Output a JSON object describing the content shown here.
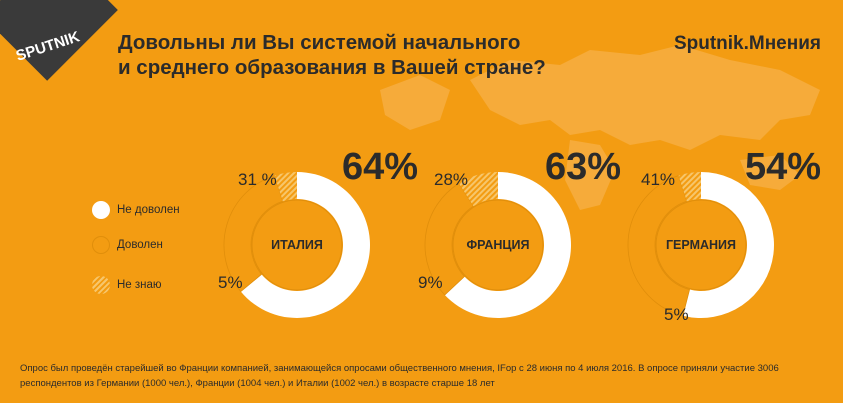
{
  "header": {
    "logo_text": "SPUTNIK",
    "title_line1": "Довольны ли Вы системой начального",
    "title_line2": "и среднего образования в Вашей стране?",
    "brand": "Sputnik.Мнения"
  },
  "legend": [
    {
      "label": "Не доволен",
      "style": "white"
    },
    {
      "label": "Доволен",
      "style": "orange"
    },
    {
      "label": "Не знаю",
      "style": "hatch"
    }
  ],
  "colors": {
    "background": "#f39c12",
    "not_satisfied": "#ffffff",
    "satisfied": "#f39c12",
    "dont_know": "#f7c66b",
    "text": "#2b2b2b"
  },
  "chart_data": {
    "type": "pie",
    "title": "Довольны ли Вы системой начального и среднего образования в Вашей стране?",
    "legend_position": "left",
    "series_names": [
      "Не доволен",
      "Доволен",
      "Не знаю"
    ],
    "charts": [
      {
        "country": "ИТАЛИЯ",
        "values": [
          64,
          31,
          5
        ],
        "labels": [
          "64%",
          "31 %",
          "5%"
        ]
      },
      {
        "country": "ФРАНЦИЯ",
        "values": [
          63,
          28,
          9
        ],
        "labels": [
          "63%",
          "28%",
          "9%"
        ]
      },
      {
        "country": "ГЕРМАНИЯ",
        "values": [
          54,
          41,
          5
        ],
        "labels": [
          "54%",
          "41%",
          "5%"
        ]
      }
    ]
  },
  "footnote": "Опрос был проведён старейшей во Франции компанией, занимающейся опросами общественного мнения, IFop с 28 июня по 4 июля 2016. В опросе приняли участие 3006 респондентов из Германии (1000 чел.), Франции (1004 чел.) и Италии (1002 чел.) в возрасте старше 18 лет"
}
